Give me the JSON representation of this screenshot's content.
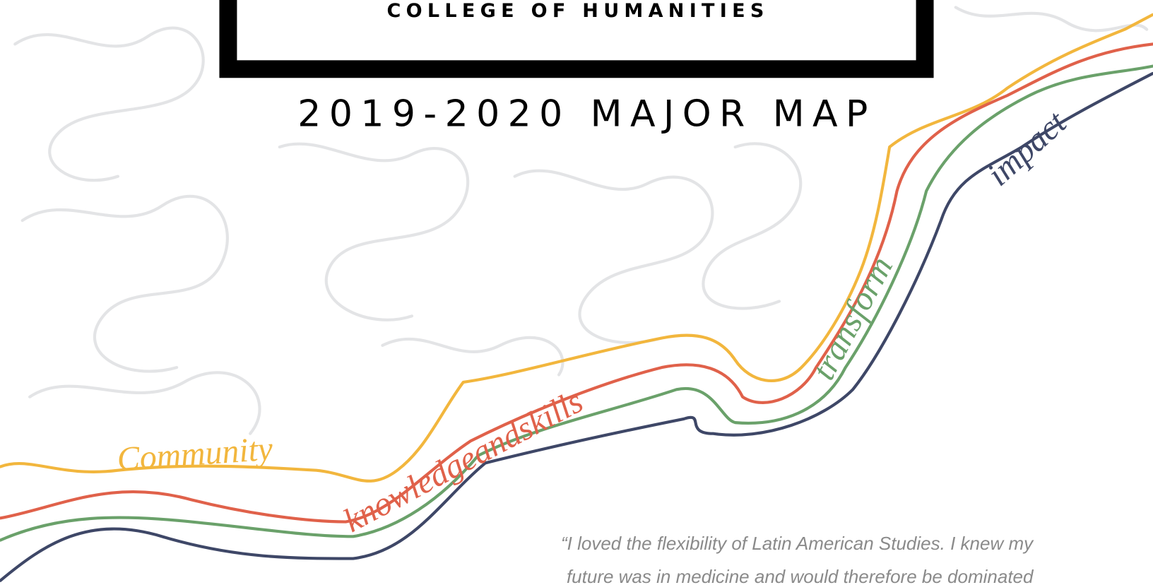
{
  "header": {
    "college": "COLLEGE OF HUMANITIES",
    "title": "2019-2020 MAJOR MAP"
  },
  "ribbon": {
    "words": [
      "Community",
      "knowledgeandskills",
      "transform",
      "impact"
    ]
  },
  "quote": {
    "lines": [
      "“I loved the flexibility of Latin American Studies. I knew my",
      "future was in medicine and would therefore be dominated"
    ]
  }
}
